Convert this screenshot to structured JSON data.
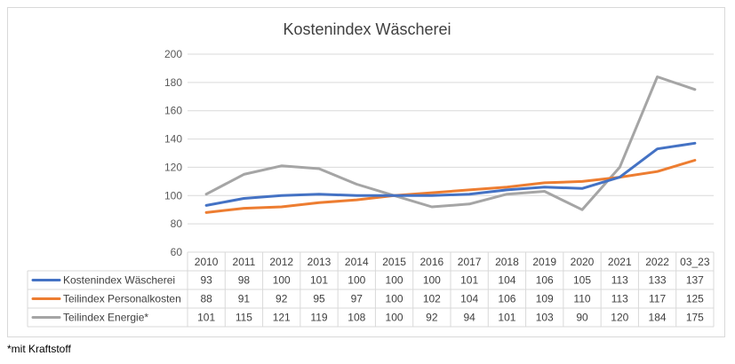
{
  "chart_data": {
    "type": "line",
    "title": "Kostenindex Wäscherei",
    "categories": [
      "2010",
      "2011",
      "2012",
      "2013",
      "2014",
      "2015",
      "2016",
      "2017",
      "2018",
      "2019",
      "2020",
      "2021",
      "2022",
      "03_23"
    ],
    "ylim": [
      60,
      200
    ],
    "yticks": [
      60,
      80,
      100,
      120,
      140,
      160,
      180,
      200
    ],
    "grid": true,
    "legend": "data-table",
    "series": [
      {
        "name": "Kostenindex Wäscherei",
        "color": "#4472c4",
        "values": [
          93,
          98,
          100,
          101,
          100,
          100,
          100,
          101,
          104,
          106,
          105,
          113,
          133,
          137
        ]
      },
      {
        "name": "Teilindex Personalkosten",
        "color": "#ed7d31",
        "values": [
          88,
          91,
          92,
          95,
          97,
          100,
          102,
          104,
          106,
          109,
          110,
          113,
          117,
          125
        ]
      },
      {
        "name": "Teilindex Energie*",
        "color": "#a5a5a5",
        "values": [
          101,
          115,
          121,
          119,
          108,
          100,
          92,
          94,
          101,
          103,
          90,
          120,
          184,
          175
        ]
      }
    ]
  },
  "footnote": "*mit Kraftstoff"
}
